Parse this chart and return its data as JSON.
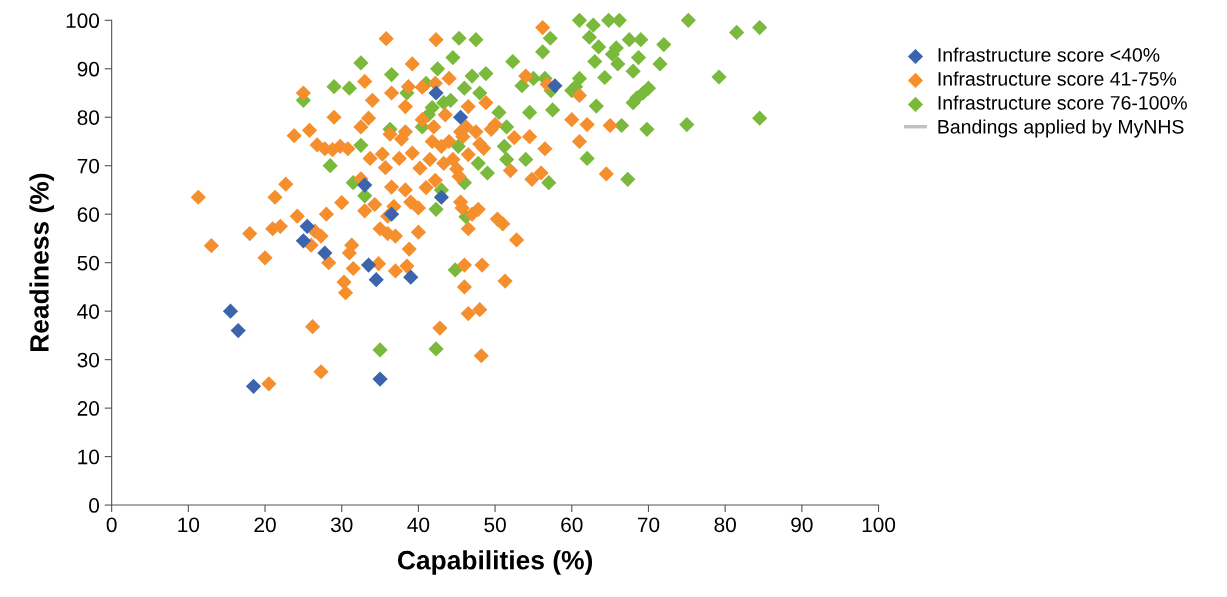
{
  "chart_data": {
    "type": "scatter",
    "xlabel": "Capabilities (%)",
    "ylabel": "Readiness (%)",
    "xlim": [
      0,
      100
    ],
    "ylim": [
      0,
      100
    ],
    "xticks": [
      0,
      10,
      20,
      30,
      40,
      50,
      60,
      70,
      80,
      90,
      100
    ],
    "yticks": [
      0,
      10,
      20,
      30,
      40,
      50,
      60,
      70,
      80,
      90,
      100
    ],
    "grid": false,
    "legend": "top right",
    "marker": "diamond",
    "series": [
      {
        "name": "Infrastructure score <40%",
        "color": "#3b64ad",
        "x": [
          15.5,
          16.5,
          18.5,
          25,
          25.5,
          27.8,
          33,
          33.5,
          34.5,
          35,
          36.5,
          39,
          42.3,
          43,
          45.5,
          57.8
        ],
        "values": [
          40,
          36,
          24.5,
          54.5,
          57.5,
          52,
          66,
          49.5,
          46.5,
          26,
          60,
          47,
          85,
          63.5,
          80,
          86.5
        ]
      },
      {
        "name": "Infrastructure score 41-75%",
        "color": "#f58f2e",
        "x": [
          11.3,
          13,
          18,
          20,
          20.5,
          21,
          21.3,
          22,
          22.7,
          23.8,
          24.2,
          25,
          25.8,
          26,
          26.2,
          26.5,
          26.8,
          27.3,
          27.3,
          27.8,
          28,
          28.3,
          28.8,
          29,
          29.8,
          30,
          30.3,
          30.5,
          30.8,
          31,
          31.3,
          31.5,
          32.5,
          32.5,
          33,
          33,
          33.5,
          33.7,
          34,
          34.3,
          34.8,
          35,
          35.3,
          35.7,
          35.8,
          36,
          36,
          36.3,
          36.5,
          36.5,
          36.8,
          37,
          37,
          37.5,
          37.8,
          38.3,
          38.3,
          38.5,
          38.3,
          38.7,
          38.8,
          39,
          39.2,
          39.2,
          40,
          40,
          40.2,
          40.5,
          40.5,
          41,
          41.5,
          41.8,
          42,
          42.2,
          42.2,
          42.3,
          42.8,
          43,
          43.3,
          43.5,
          44,
          44,
          44.5,
          45,
          45.3,
          45.5,
          45.5,
          45.7,
          45.8,
          46,
          46,
          46.2,
          46.5,
          46.5,
          46.5,
          46.5,
          47,
          47.5,
          47.8,
          48,
          48,
          48.2,
          48.3,
          48.5,
          48.8,
          49.5,
          50,
          50.3,
          51,
          51.3,
          52,
          52.5,
          52.8,
          54,
          54.5,
          54.8,
          56,
          56.2,
          56.5,
          56.8,
          60,
          61,
          61,
          62,
          64.5,
          65
        ],
        "values": [
          63.5,
          53.5,
          56,
          51,
          25,
          57,
          63.5,
          57.5,
          66.2,
          76.2,
          59.6,
          85,
          77.3,
          53.6,
          36.8,
          56.5,
          74.3,
          27.5,
          55.5,
          73.5,
          60,
          50,
          73.3,
          80,
          74,
          62.4,
          46,
          43.8,
          73.5,
          52,
          53.6,
          48.8,
          67.3,
          78,
          60.7,
          87.4,
          79.8,
          71.5,
          83.5,
          62,
          49.8,
          57,
          72.4,
          69.6,
          96.2,
          56,
          59.6,
          76.5,
          85,
          65.6,
          61.6,
          48.3,
          55.5,
          71.5,
          75.5,
          82.2,
          65,
          49.3,
          77,
          86.3,
          52.8,
          62.5,
          91,
          72.6,
          56.3,
          61.3,
          69.5,
          79.5,
          86.2,
          65.5,
          71.3,
          75,
          78,
          67,
          87,
          96,
          36.5,
          74,
          70.5,
          80.5,
          88,
          75,
          71.3,
          69.3,
          67.8,
          77,
          62.5,
          61.3,
          76,
          49.5,
          45,
          78,
          82.2,
          72.3,
          57,
          39.5,
          60,
          77,
          61,
          74.5,
          40.3,
          30.8,
          49.5,
          73.6,
          83,
          77.5,
          78.5,
          59,
          58,
          46.2,
          69,
          75.8,
          54.7,
          88.5,
          76,
          67.2,
          68.5,
          98.5,
          73.5,
          86.8,
          79.5,
          84.5,
          75,
          78.5,
          68.3,
          78.3
        ]
      },
      {
        "name": "Infrastructure score 76-100%",
        "color": "#7ab93b",
        "x": [
          25,
          28.5,
          29,
          31,
          31.5,
          32.5,
          32.5,
          33,
          35,
          36.3,
          36.5,
          38.5,
          40.5,
          41,
          41.3,
          41.8,
          42.3,
          42.3,
          42.5,
          43,
          43.3,
          44.2,
          44.5,
          44.8,
          45.2,
          45.3,
          46,
          46,
          46.2,
          47,
          47.5,
          47.8,
          48,
          48.8,
          49,
          50.5,
          51.2,
          51.5,
          51.5,
          52.3,
          53.5,
          54,
          54.5,
          55,
          56.2,
          56.5,
          57,
          57.2,
          57.3,
          57.5,
          60,
          60.5,
          61,
          61,
          62,
          62.3,
          62.8,
          63,
          63.2,
          63.5,
          64.3,
          64.8,
          65.3,
          65.8,
          66,
          66.2,
          66.5,
          67.3,
          67.5,
          68,
          68,
          68.5,
          68.7,
          69,
          69.3,
          69.8,
          70,
          71.5,
          72,
          75,
          75.2,
          79.2,
          81.5,
          84.5,
          84.5
        ],
        "values": [
          83.5,
          70,
          86.3,
          86,
          66.5,
          91.2,
          74.2,
          63.8,
          32,
          77.5,
          88.8,
          85,
          78,
          87,
          80.5,
          82,
          61,
          32.2,
          90,
          65,
          83,
          83.5,
          92.3,
          48.5,
          74,
          96.3,
          66.5,
          86,
          59.5,
          88.5,
          96,
          70.5,
          85,
          89,
          68.5,
          81,
          74,
          71.3,
          78,
          91.5,
          86.5,
          71.3,
          81,
          88,
          93.5,
          88,
          66.5,
          96.3,
          85.5,
          81.5,
          85.5,
          86.3,
          88,
          100,
          71.5,
          96.5,
          99,
          91.5,
          82.3,
          94.5,
          88.2,
          100,
          93,
          94.3,
          91,
          100,
          78.3,
          67.2,
          96,
          89.5,
          83,
          84,
          92.3,
          96,
          85,
          77.5,
          86,
          91,
          95,
          78.5,
          100,
          88.3,
          97.5,
          98.5,
          79.8
        ]
      },
      {
        "name": "Bandings applied by MyNHS",
        "type": "line",
        "color": "#c0c0c0"
      }
    ]
  }
}
